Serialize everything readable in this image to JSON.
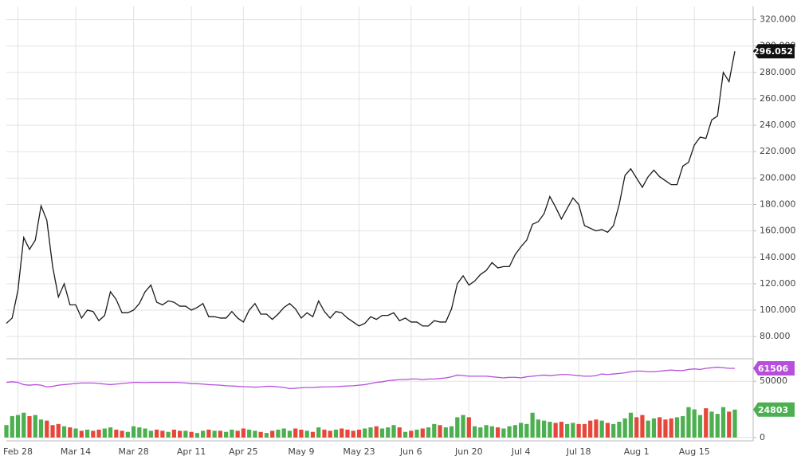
{
  "chart_data": [
    {
      "type": "line",
      "categories": [
        null,
        null,
        "Feb 28",
        null,
        null,
        null,
        null,
        null,
        null,
        null,
        null,
        null,
        "Mar 14",
        null,
        null,
        null,
        null,
        null,
        null,
        null,
        null,
        null,
        "Mar 28",
        null,
        null,
        null,
        null,
        null,
        null,
        null,
        null,
        null,
        "Apr 11",
        null,
        null,
        null,
        null,
        null,
        null,
        null,
        null,
        "Apr 25",
        null,
        null,
        null,
        null,
        null,
        null,
        null,
        null,
        null,
        "May 9",
        null,
        null,
        null,
        null,
        null,
        null,
        null,
        null,
        null,
        "May 23",
        null,
        null,
        null,
        null,
        null,
        null,
        null,
        null,
        "Jun 6",
        null,
        null,
        null,
        null,
        null,
        null,
        null,
        null,
        null,
        "Jun 20",
        null,
        null,
        null,
        null,
        null,
        null,
        null,
        null,
        "Jul 4",
        null,
        null,
        null,
        null,
        null,
        null,
        null,
        null,
        null,
        "Jul 18",
        null,
        null,
        null,
        null,
        null,
        null,
        null,
        null,
        null,
        "Aug 1",
        null,
        null,
        null,
        null,
        null,
        null,
        null,
        null,
        null,
        "Aug 15",
        null,
        null,
        null,
        null,
        null,
        null,
        null
      ],
      "series": [
        {
          "color": "#1a1a1a",
          "values": [
            90,
            94,
            115,
            155,
            146,
            153,
            179,
            168,
            133,
            110,
            120,
            104,
            104,
            94,
            100,
            99,
            92,
            96,
            114,
            108,
            98,
            98,
            100,
            105,
            114,
            119,
            106,
            104,
            107,
            106,
            103,
            103,
            100,
            102,
            105,
            95,
            95,
            94,
            94,
            99,
            94,
            91,
            100,
            105,
            97,
            97,
            93,
            97,
            102,
            105,
            101,
            94,
            98,
            95,
            107,
            99,
            94,
            99,
            98,
            94,
            91,
            88,
            90,
            95,
            93,
            96,
            96,
            98,
            92,
            94,
            91,
            91,
            88,
            88,
            92,
            91,
            91,
            101,
            120,
            126,
            119,
            122,
            127,
            130,
            136,
            132,
            133,
            133,
            142,
            148,
            153,
            165,
            167,
            173,
            186,
            178,
            169,
            177,
            185,
            180,
            164,
            162,
            160,
            161,
            159,
            164,
            180,
            202,
            207,
            200,
            193,
            201,
            206,
            201,
            198,
            195,
            195,
            209,
            212,
            225,
            231,
            230,
            244,
            247,
            280,
            273,
            296.052
          ]
        }
      ],
      "ylim": [
        65,
        330
      ],
      "yticks": [
        {
          "value": 80,
          "label": "80.000"
        },
        {
          "value": 100,
          "label": "100.000"
        },
        {
          "value": 120,
          "label": "120.000"
        },
        {
          "value": 140,
          "label": "140.000"
        },
        {
          "value": 160,
          "label": "160.000"
        },
        {
          "value": 180,
          "label": "180.000"
        },
        {
          "value": 200,
          "label": "200.000"
        },
        {
          "value": 220,
          "label": "220.000"
        },
        {
          "value": 240,
          "label": "240.000"
        },
        {
          "value": 260,
          "label": "260.000"
        },
        {
          "value": 280,
          "label": "280.000"
        },
        {
          "value": 300,
          "label": "300.000"
        },
        {
          "value": 320,
          "label": "320.000"
        }
      ],
      "grid": true
    },
    {
      "type": "bar",
      "series": [
        {
          "type": "bar",
          "up_color": "#4caf50",
          "down_color": "#e5483a",
          "values": [
            11000,
            19000,
            20000,
            22000,
            19000,
            20000,
            16000,
            15000,
            11000,
            12000,
            10000,
            9000,
            8000,
            6000,
            7000,
            6000,
            7000,
            8000,
            9000,
            7000,
            6000,
            5000,
            10000,
            9000,
            8000,
            6000,
            7000,
            6000,
            5000,
            7000,
            6000,
            6000,
            5000,
            4000,
            6000,
            7000,
            6000,
            6000,
            5000,
            7000,
            6000,
            8000,
            7000,
            6000,
            5000,
            4000,
            6000,
            7000,
            8000,
            6000,
            8000,
            7000,
            6000,
            5000,
            9000,
            7000,
            6000,
            7000,
            8000,
            7000,
            6000,
            7000,
            8000,
            9000,
            10000,
            8000,
            9000,
            11000,
            9000,
            5000,
            6000,
            7000,
            8000,
            9000,
            12000,
            11000,
            9000,
            10000,
            18000,
            20000,
            18000,
            10000,
            9000,
            11000,
            10000,
            9000,
            8000,
            10000,
            11000,
            13000,
            12000,
            22000,
            16000,
            15000,
            14000,
            13000,
            14000,
            12000,
            13000,
            12000,
            12000,
            15000,
            16000,
            15000,
            13000,
            12000,
            14000,
            17000,
            22000,
            18000,
            20000,
            15000,
            17000,
            18000,
            16000,
            17000,
            18000,
            19000,
            27000,
            25000,
            20000,
            26000,
            23000,
            21000,
            27000,
            23000,
            24803
          ]
        },
        {
          "type": "line",
          "color": "#b84fdc",
          "values": [
            49000,
            49500,
            49000,
            47000,
            46500,
            47000,
            46500,
            45000,
            45500,
            46500,
            47000,
            47500,
            48000,
            48500,
            48500,
            48500,
            48000,
            47500,
            47000,
            47500,
            48000,
            48500,
            49000,
            49000,
            48800,
            49000,
            49000,
            49000,
            49000,
            49000,
            48800,
            48500,
            48000,
            47800,
            47500,
            47000,
            46800,
            46500,
            46000,
            45800,
            45500,
            45200,
            45000,
            44800,
            45000,
            45500,
            45500,
            45000,
            44500,
            43500,
            43800,
            44200,
            44500,
            44500,
            44800,
            45000,
            45000,
            45200,
            45500,
            45800,
            46000,
            46500,
            47000,
            48000,
            49000,
            49500,
            50500,
            51000,
            51500,
            51500,
            52000,
            52000,
            51500,
            52000,
            52000,
            52500,
            53000,
            54000,
            55500,
            55000,
            54500,
            54500,
            54500,
            54500,
            54000,
            53500,
            53000,
            53500,
            53500,
            53000,
            54000,
            54500,
            55000,
            55500,
            55000,
            55500,
            56000,
            56000,
            55500,
            55000,
            54500,
            54500,
            55000,
            56500,
            56000,
            56500,
            57000,
            57500,
            58500,
            59000,
            59000,
            58500,
            58500,
            59000,
            59500,
            60000,
            59500,
            59500,
            60500,
            61000,
            60500,
            61500,
            62000,
            62500,
            62000,
            61500,
            61506
          ]
        }
      ],
      "ylim": [
        -3000,
        70000
      ],
      "yticks": [
        0,
        50000
      ],
      "grid": true
    }
  ]
}
